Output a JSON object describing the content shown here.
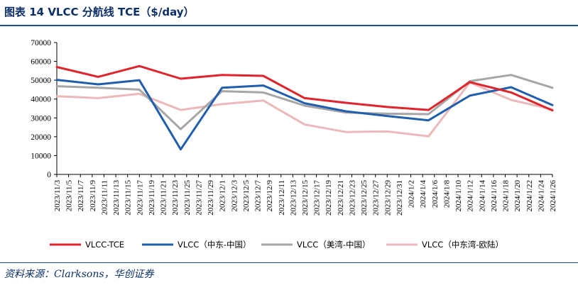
{
  "header": {
    "title": "图表 14  VLCC 分航线 TCE（$/day）"
  },
  "source": "资料来源：Clarksons，华创证券",
  "chart_data": {
    "type": "line",
    "title": "VLCC 分航线 TCE（$/day）",
    "xlabel": "",
    "ylabel": "",
    "ylim": [
      0,
      70000
    ],
    "yticks": [
      0,
      10000,
      20000,
      30000,
      40000,
      50000,
      60000,
      70000
    ],
    "grid": false,
    "legend_position": "bottom",
    "categories": [
      "2023/11/3",
      "2023/11/5",
      "2023/11/7",
      "2023/11/9",
      "2023/11/11",
      "2023/11/13",
      "2023/11/15",
      "2023/11/17",
      "2023/11/19",
      "2023/11/21",
      "2023/11/23",
      "2023/11/25",
      "2023/11/27",
      "2023/11/29",
      "2023/12/1",
      "2023/12/3",
      "2023/12/5",
      "2023/12/7",
      "2023/12/9",
      "2023/12/11",
      "2023/12/13",
      "2023/12/15",
      "2023/12/17",
      "2023/12/19",
      "2023/12/21",
      "2023/12/23",
      "2023/12/25",
      "2023/12/27",
      "2023/12/29",
      "2023/12/31",
      "2024/1/2",
      "2024/1/4",
      "2024/1/6",
      "2024/1/8",
      "2024/1/10",
      "2024/1/12",
      "2024/1/14",
      "2024/1/16",
      "2024/1/18",
      "2024/1/20",
      "2024/1/22",
      "2024/1/24",
      "2024/1/26"
    ],
    "series": [
      {
        "name": "VLCC-TCE",
        "color": "#e0242b",
        "points": [
          [
            "2023/11/3",
            57000
          ],
          [
            "2023/11/10",
            51800
          ],
          [
            "2023/11/17",
            57500
          ],
          [
            "2023/11/24",
            50800
          ],
          [
            "2023/12/1",
            52800
          ],
          [
            "2023/12/8",
            52300
          ],
          [
            "2023/12/15",
            40500
          ],
          [
            "2023/12/22",
            38000
          ],
          [
            "2023/12/29",
            35800
          ],
          [
            "2024/1/5",
            34200
          ],
          [
            "2024/1/12",
            49000
          ],
          [
            "2024/1/19",
            43500
          ],
          [
            "2024/1/26",
            34000
          ]
        ]
      },
      {
        "name": "VLCC（中东-中国）",
        "color": "#1f5fad",
        "points": [
          [
            "2023/11/3",
            50200
          ],
          [
            "2023/11/10",
            47800
          ],
          [
            "2023/11/17",
            50000
          ],
          [
            "2023/11/24",
            13300
          ],
          [
            "2023/12/1",
            46000
          ],
          [
            "2023/12/8",
            47200
          ],
          [
            "2023/12/15",
            37800
          ],
          [
            "2023/12/22",
            33500
          ],
          [
            "2023/12/29",
            31000
          ],
          [
            "2024/1/5",
            28700
          ],
          [
            "2024/1/12",
            41800
          ],
          [
            "2024/1/19",
            46300
          ],
          [
            "2024/1/26",
            36800
          ]
        ]
      },
      {
        "name": "VLCC（美湾-中国）",
        "color": "#a6a6a6",
        "points": [
          [
            "2023/11/3",
            46800
          ],
          [
            "2023/11/10",
            46000
          ],
          [
            "2023/11/17",
            45000
          ],
          [
            "2023/11/24",
            24000
          ],
          [
            "2023/12/1",
            44200
          ],
          [
            "2023/12/8",
            43500
          ],
          [
            "2023/12/15",
            36500
          ],
          [
            "2023/12/22",
            32800
          ],
          [
            "2023/12/29",
            32200
          ],
          [
            "2024/1/5",
            32000
          ],
          [
            "2024/1/12",
            49500
          ],
          [
            "2024/1/19",
            52800
          ],
          [
            "2024/1/26",
            46000
          ]
        ]
      },
      {
        "name": "VLCC（中东湾-欧陆）",
        "color": "#ecb9bb",
        "points": [
          [
            "2023/11/3",
            41500
          ],
          [
            "2023/11/10",
            40500
          ],
          [
            "2023/11/17",
            42800
          ],
          [
            "2023/11/24",
            34200
          ],
          [
            "2023/12/1",
            37300
          ],
          [
            "2023/12/8",
            39200
          ],
          [
            "2023/12/15",
            26500
          ],
          [
            "2023/12/22",
            22500
          ],
          [
            "2023/12/29",
            22800
          ],
          [
            "2024/1/5",
            20200
          ],
          [
            "2024/1/12",
            48800
          ],
          [
            "2024/1/19",
            39500
          ],
          [
            "2024/1/26",
            34500
          ]
        ]
      }
    ]
  }
}
